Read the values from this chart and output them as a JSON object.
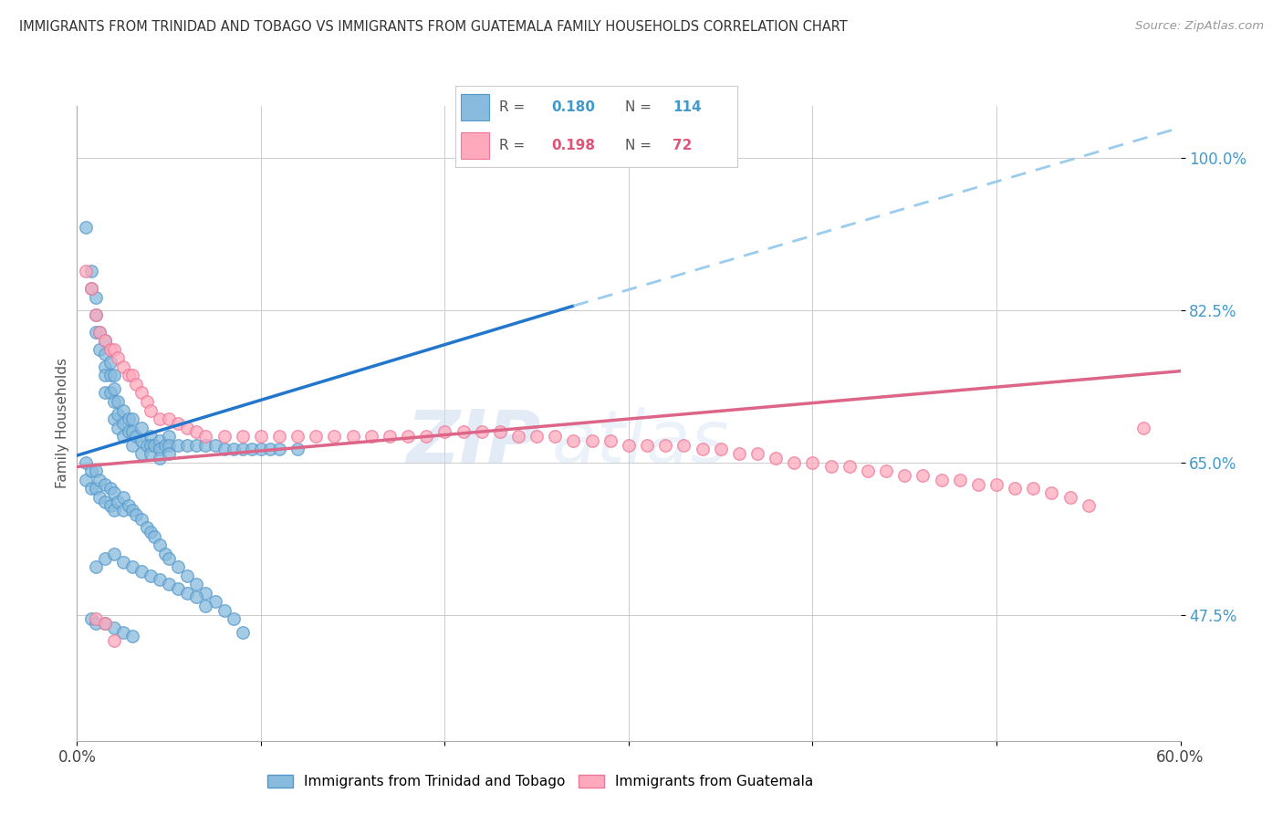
{
  "title": "IMMIGRANTS FROM TRINIDAD AND TOBAGO VS IMMIGRANTS FROM GUATEMALA FAMILY HOUSEHOLDS CORRELATION CHART",
  "source": "Source: ZipAtlas.com",
  "ylabel": "Family Households",
  "ytick_labels": [
    "100.0%",
    "82.5%",
    "65.0%",
    "47.5%"
  ],
  "ytick_values": [
    1.0,
    0.825,
    0.65,
    0.475
  ],
  "xmin": 0.0,
  "xmax": 0.6,
  "ymin": 0.33,
  "ymax": 1.06,
  "legend_r_blue": "0.180",
  "legend_n_blue": "114",
  "legend_r_pink": "0.198",
  "legend_n_pink": "72",
  "blue_color": "#88bbdd",
  "blue_edge_color": "#5599cc",
  "pink_color": "#ffaabc",
  "pink_edge_color": "#ee7799",
  "blue_line_color": "#2277cc",
  "pink_line_color": "#dd6688",
  "dashed_line_color": "#99ccee",
  "watermark_zip": "ZIP",
  "watermark_atlas": "atlas",
  "blue_scatter_x": [
    0.005,
    0.008,
    0.008,
    0.01,
    0.01,
    0.01,
    0.012,
    0.012,
    0.015,
    0.015,
    0.015,
    0.015,
    0.015,
    0.018,
    0.018,
    0.018,
    0.02,
    0.02,
    0.02,
    0.02,
    0.022,
    0.022,
    0.022,
    0.025,
    0.025,
    0.025,
    0.028,
    0.028,
    0.03,
    0.03,
    0.03,
    0.032,
    0.035,
    0.035,
    0.035,
    0.038,
    0.04,
    0.04,
    0.04,
    0.042,
    0.045,
    0.045,
    0.045,
    0.048,
    0.05,
    0.05,
    0.05,
    0.055,
    0.06,
    0.065,
    0.07,
    0.075,
    0.08,
    0.085,
    0.09,
    0.095,
    0.1,
    0.105,
    0.11,
    0.12,
    0.005,
    0.005,
    0.008,
    0.008,
    0.01,
    0.01,
    0.012,
    0.012,
    0.015,
    0.015,
    0.018,
    0.018,
    0.02,
    0.02,
    0.022,
    0.025,
    0.025,
    0.028,
    0.03,
    0.032,
    0.035,
    0.038,
    0.04,
    0.042,
    0.045,
    0.048,
    0.05,
    0.055,
    0.06,
    0.065,
    0.07,
    0.075,
    0.08,
    0.085,
    0.09,
    0.01,
    0.015,
    0.02,
    0.025,
    0.03,
    0.035,
    0.04,
    0.045,
    0.05,
    0.055,
    0.06,
    0.065,
    0.07,
    0.008,
    0.01,
    0.015,
    0.02,
    0.025,
    0.03
  ],
  "blue_scatter_y": [
    0.92,
    0.87,
    0.85,
    0.84,
    0.82,
    0.8,
    0.8,
    0.78,
    0.79,
    0.775,
    0.76,
    0.75,
    0.73,
    0.765,
    0.75,
    0.73,
    0.75,
    0.735,
    0.72,
    0.7,
    0.72,
    0.705,
    0.69,
    0.71,
    0.695,
    0.68,
    0.7,
    0.685,
    0.7,
    0.685,
    0.67,
    0.68,
    0.69,
    0.675,
    0.66,
    0.67,
    0.68,
    0.67,
    0.66,
    0.67,
    0.675,
    0.665,
    0.655,
    0.67,
    0.68,
    0.67,
    0.66,
    0.67,
    0.67,
    0.67,
    0.67,
    0.67,
    0.665,
    0.665,
    0.665,
    0.665,
    0.665,
    0.665,
    0.665,
    0.665,
    0.65,
    0.63,
    0.64,
    0.62,
    0.64,
    0.62,
    0.63,
    0.61,
    0.625,
    0.605,
    0.62,
    0.6,
    0.615,
    0.595,
    0.605,
    0.61,
    0.595,
    0.6,
    0.595,
    0.59,
    0.585,
    0.575,
    0.57,
    0.565,
    0.555,
    0.545,
    0.54,
    0.53,
    0.52,
    0.51,
    0.5,
    0.49,
    0.48,
    0.47,
    0.455,
    0.53,
    0.54,
    0.545,
    0.535,
    0.53,
    0.525,
    0.52,
    0.515,
    0.51,
    0.505,
    0.5,
    0.495,
    0.485,
    0.47,
    0.465,
    0.465,
    0.46,
    0.455,
    0.45
  ],
  "pink_scatter_x": [
    0.005,
    0.008,
    0.01,
    0.012,
    0.015,
    0.018,
    0.02,
    0.022,
    0.025,
    0.028,
    0.03,
    0.032,
    0.035,
    0.038,
    0.04,
    0.045,
    0.05,
    0.055,
    0.06,
    0.065,
    0.07,
    0.08,
    0.09,
    0.1,
    0.11,
    0.12,
    0.13,
    0.14,
    0.15,
    0.16,
    0.17,
    0.18,
    0.19,
    0.2,
    0.21,
    0.22,
    0.23,
    0.24,
    0.25,
    0.26,
    0.27,
    0.28,
    0.29,
    0.3,
    0.31,
    0.32,
    0.33,
    0.34,
    0.35,
    0.36,
    0.37,
    0.38,
    0.39,
    0.4,
    0.41,
    0.42,
    0.43,
    0.44,
    0.45,
    0.46,
    0.47,
    0.48,
    0.49,
    0.5,
    0.51,
    0.52,
    0.53,
    0.54,
    0.55,
    0.58,
    0.01,
    0.015,
    0.02
  ],
  "pink_scatter_y": [
    0.87,
    0.85,
    0.82,
    0.8,
    0.79,
    0.78,
    0.78,
    0.77,
    0.76,
    0.75,
    0.75,
    0.74,
    0.73,
    0.72,
    0.71,
    0.7,
    0.7,
    0.695,
    0.69,
    0.685,
    0.68,
    0.68,
    0.68,
    0.68,
    0.68,
    0.68,
    0.68,
    0.68,
    0.68,
    0.68,
    0.68,
    0.68,
    0.68,
    0.685,
    0.685,
    0.685,
    0.685,
    0.68,
    0.68,
    0.68,
    0.675,
    0.675,
    0.675,
    0.67,
    0.67,
    0.67,
    0.67,
    0.665,
    0.665,
    0.66,
    0.66,
    0.655,
    0.65,
    0.65,
    0.645,
    0.645,
    0.64,
    0.64,
    0.635,
    0.635,
    0.63,
    0.63,
    0.625,
    0.625,
    0.62,
    0.62,
    0.615,
    0.61,
    0.6,
    0.69,
    0.47,
    0.465,
    0.445
  ],
  "blue_line_x0": 0.0,
  "blue_line_x1": 0.27,
  "blue_line_y0": 0.658,
  "blue_line_y1": 0.83,
  "dashed_line_x0": 0.27,
  "dashed_line_x1": 0.6,
  "dashed_line_y0": 0.83,
  "dashed_line_y1": 1.035,
  "pink_line_x0": 0.0,
  "pink_line_x1": 0.6,
  "pink_line_y0": 0.645,
  "pink_line_y1": 0.755
}
